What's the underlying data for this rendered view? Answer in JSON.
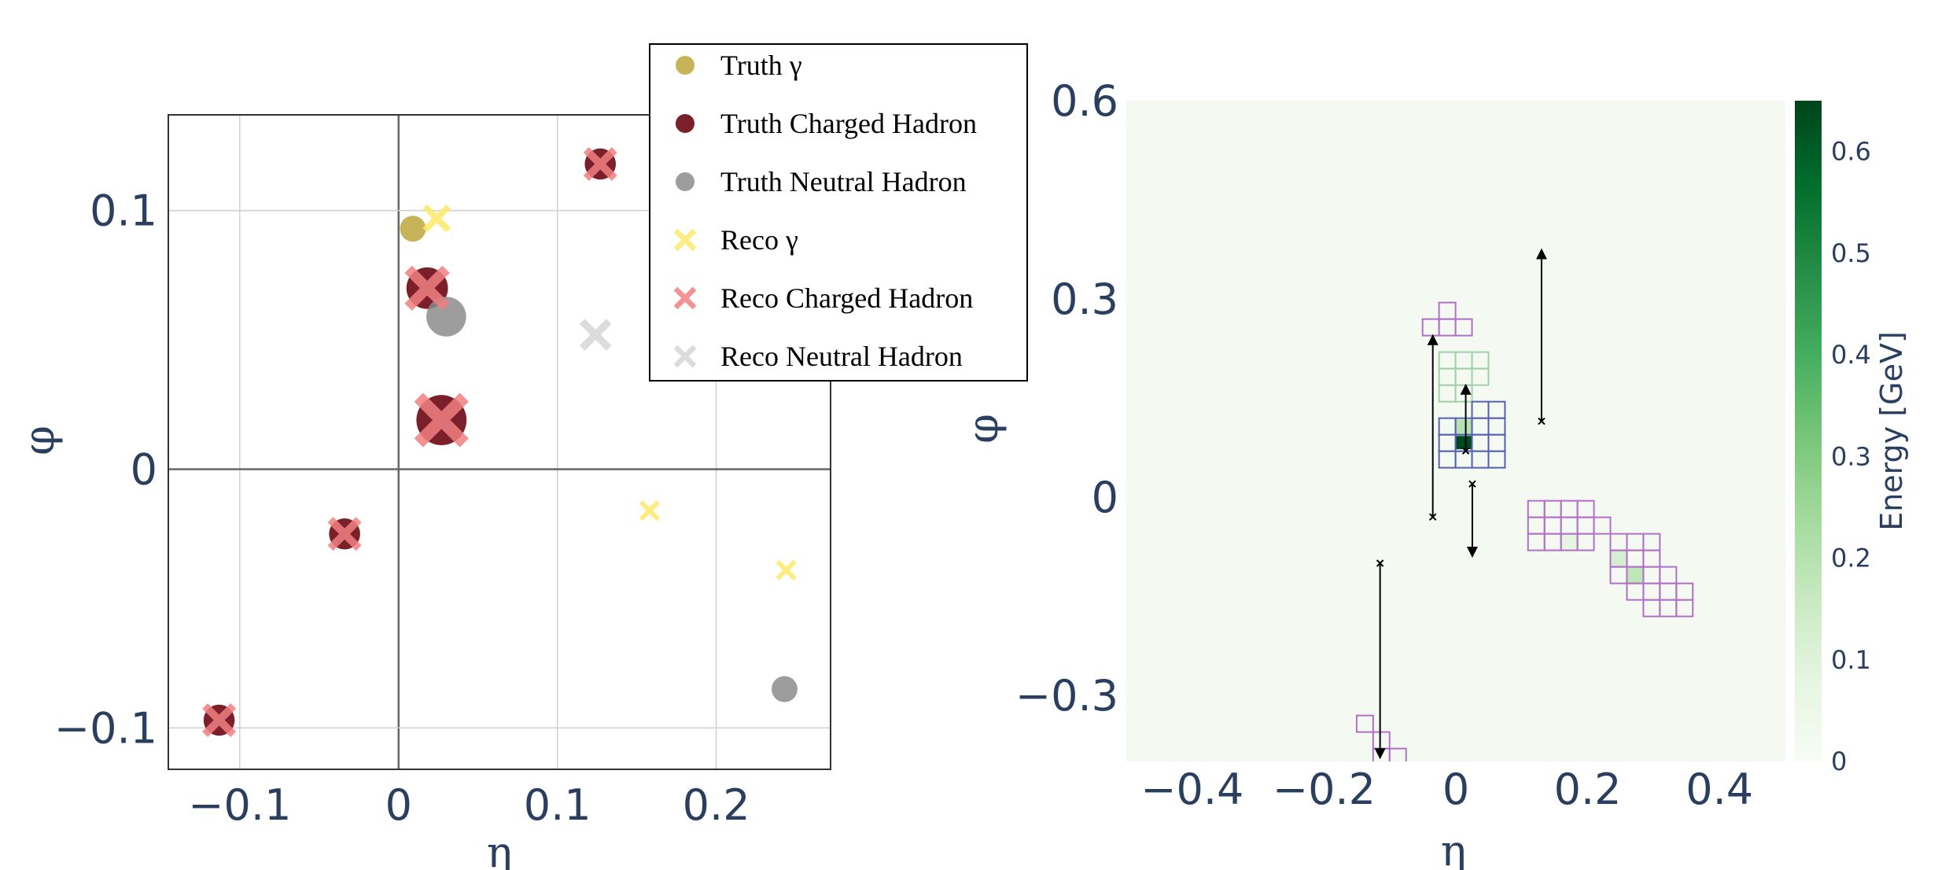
{
  "chart_data": [
    {
      "type": "scatter",
      "xlabel": "η",
      "ylabel": "φ",
      "xlim": [
        -0.145,
        0.272
      ],
      "ylim": [
        -0.116,
        0.137
      ],
      "xticks": [
        -0.1,
        0,
        0.1,
        0.2
      ],
      "xtick_labels": [
        "−0.1",
        "0",
        "0.1",
        "0.2"
      ],
      "yticks": [
        -0.1,
        0,
        0.1
      ],
      "ytick_labels": [
        "−0.1",
        "0",
        "0.1"
      ],
      "grid": true,
      "legend_position": "top-right",
      "series": [
        {
          "name": "Truth γ",
          "marker": "circle",
          "color": "#c8b458",
          "points": [
            {
              "x": 0.009,
              "y": 0.093,
              "size": 30
            }
          ]
        },
        {
          "name": "Truth Charged Hadron",
          "marker": "circle",
          "color": "#7b1f2a",
          "points": [
            {
              "x": 0.018,
              "y": 0.07,
              "size": 48
            },
            {
              "x": 0.027,
              "y": 0.019,
              "size": 58
            },
            {
              "x": 0.127,
              "y": 0.118,
              "size": 36
            },
            {
              "x": -0.034,
              "y": -0.025,
              "size": 36
            },
            {
              "x": -0.113,
              "y": -0.097,
              "size": 36
            }
          ]
        },
        {
          "name": "Truth Neutral Hadron",
          "marker": "circle",
          "color": "#8c8c8c",
          "opacity": 0.85,
          "points": [
            {
              "x": 0.03,
              "y": 0.059,
              "size": 46
            },
            {
              "x": 0.243,
              "y": -0.085,
              "size": 30
            }
          ]
        },
        {
          "name": "Reco γ",
          "marker": "x",
          "color": "#ffe96b",
          "opacity": 0.85,
          "points": [
            {
              "x": 0.024,
              "y": 0.097,
              "size": 30
            },
            {
              "x": 0.158,
              "y": -0.016,
              "size": 22
            },
            {
              "x": 0.244,
              "y": -0.039,
              "size": 22
            }
          ]
        },
        {
          "name": "Reco Charged Hadron",
          "marker": "x",
          "color": "#f08080",
          "opacity": 0.85,
          "points": [
            {
              "x": 0.018,
              "y": 0.07,
              "size": 48
            },
            {
              "x": 0.027,
              "y": 0.019,
              "size": 58
            },
            {
              "x": 0.127,
              "y": 0.118,
              "size": 36
            },
            {
              "x": -0.034,
              "y": -0.025,
              "size": 36
            },
            {
              "x": -0.113,
              "y": -0.097,
              "size": 36
            }
          ]
        },
        {
          "name": "Reco Neutral Hadron",
          "marker": "x",
          "color": "#d6d6d6",
          "opacity": 0.85,
          "points": [
            {
              "x": 0.124,
              "y": 0.052,
              "size": 34
            }
          ]
        }
      ]
    },
    {
      "type": "heatmap",
      "xlabel": "η",
      "ylabel": "φ",
      "xlim": [
        -0.5,
        0.5
      ],
      "ylim": [
        -0.4,
        0.6
      ],
      "xticks": [
        -0.4,
        -0.2,
        0,
        0.2,
        0.4
      ],
      "xtick_labels": [
        "−0.4",
        "−0.2",
        "0",
        "0.2",
        "0.4"
      ],
      "yticks": [
        -0.3,
        0,
        0.3,
        0.6
      ],
      "ytick_labels": [
        "−0.3",
        "0",
        "0.3",
        "0.6"
      ],
      "background_color": "#f4faf2",
      "cell_size": [
        0.025,
        0.025
      ],
      "colorbar": {
        "title": "Energy [GeV]",
        "range": [
          0,
          0.65
        ],
        "ticks": [
          0,
          0.1,
          0.2,
          0.3,
          0.4,
          0.5,
          0.6
        ],
        "tick_labels": [
          "0",
          "0.1",
          "0.2",
          "0.3",
          "0.4",
          "0.5",
          "0.6"
        ],
        "colors": [
          "#f7fcf5",
          "#e5f5e0",
          "#c7e9c0",
          "#a1d99b",
          "#74c476",
          "#41ab5d",
          "#238b45",
          "#006d2c",
          "#00441b"
        ]
      },
      "cell_groups": [
        {
          "name": "layer-violet",
          "edge_color": "#b070c8",
          "cells": [
            [
              -0.013,
              0.282
            ],
            [
              -0.038,
              0.257
            ],
            [
              -0.013,
              0.257
            ],
            [
              0.012,
              0.257
            ],
            [
              0.122,
              -0.018
            ],
            [
              0.147,
              -0.018
            ],
            [
              0.172,
              -0.018
            ],
            [
              0.197,
              -0.018
            ],
            [
              0.122,
              -0.043
            ],
            [
              0.147,
              -0.043
            ],
            [
              0.172,
              -0.043
            ],
            [
              0.197,
              -0.043
            ],
            [
              0.222,
              -0.043
            ],
            [
              0.122,
              -0.068
            ],
            [
              0.147,
              -0.068
            ],
            [
              0.172,
              -0.068
            ],
            [
              0.197,
              -0.068
            ],
            [
              0.247,
              -0.068
            ],
            [
              0.272,
              -0.068
            ],
            [
              0.297,
              -0.068
            ],
            [
              0.247,
              -0.093
            ],
            [
              0.272,
              -0.093
            ],
            [
              0.297,
              -0.093
            ],
            [
              0.247,
              -0.118
            ],
            [
              0.272,
              -0.118
            ],
            [
              0.297,
              -0.118
            ],
            [
              0.322,
              -0.118
            ],
            [
              0.272,
              -0.143
            ],
            [
              0.297,
              -0.143
            ],
            [
              0.322,
              -0.143
            ],
            [
              0.347,
              -0.143
            ],
            [
              0.297,
              -0.168
            ],
            [
              0.322,
              -0.168
            ],
            [
              0.347,
              -0.168
            ],
            [
              -0.138,
              -0.343
            ],
            [
              -0.113,
              -0.368
            ],
            [
              -0.113,
              -0.393
            ],
            [
              -0.088,
              -0.393
            ]
          ]
        },
        {
          "name": "layer-green",
          "edge_color": "#9fd0a8",
          "cells": [
            [
              -0.013,
              0.207
            ],
            [
              0.012,
              0.207
            ],
            [
              0.037,
              0.207
            ],
            [
              -0.013,
              0.182
            ],
            [
              0.012,
              0.182
            ],
            [
              0.037,
              0.182
            ],
            [
              -0.013,
              0.157
            ],
            [
              0.012,
              0.157
            ]
          ]
        },
        {
          "name": "layer-blue",
          "edge_color": "#5560b0",
          "cells": [
            [
              0.037,
              0.132
            ],
            [
              0.062,
              0.132
            ],
            [
              -0.013,
              0.107
            ],
            [
              0.012,
              0.107
            ],
            [
              0.037,
              0.107
            ],
            [
              0.062,
              0.107
            ],
            [
              -0.013,
              0.082
            ],
            [
              0.012,
              0.082
            ],
            [
              0.037,
              0.082
            ],
            [
              0.062,
              0.082
            ],
            [
              -0.013,
              0.057
            ],
            [
              0.012,
              0.057
            ],
            [
              0.037,
              0.057
            ],
            [
              0.062,
              0.057
            ]
          ]
        }
      ],
      "filled_cells": [
        {
          "x": 0.012,
          "y": 0.085,
          "energy": 0.64
        },
        {
          "x": 0.012,
          "y": 0.105,
          "energy": 0.2
        },
        {
          "x": 0.172,
          "y": -0.068,
          "energy": 0.08
        },
        {
          "x": 0.272,
          "y": -0.118,
          "energy": 0.18
        },
        {
          "x": 0.247,
          "y": -0.093,
          "energy": 0.12
        }
      ],
      "arrows": [
        {
          "x0": -0.035,
          "y0": -0.03,
          "x1": -0.035,
          "y1": 0.245
        },
        {
          "x0": 0.015,
          "y0": 0.07,
          "x1": 0.015,
          "y1": 0.17
        },
        {
          "x0": 0.025,
          "y0": 0.02,
          "x1": 0.025,
          "y1": -0.09
        },
        {
          "x0": 0.13,
          "y0": 0.115,
          "x1": 0.13,
          "y1": 0.375
        },
        {
          "x0": -0.115,
          "y0": -0.1,
          "x1": -0.115,
          "y1": -0.395
        }
      ]
    }
  ]
}
